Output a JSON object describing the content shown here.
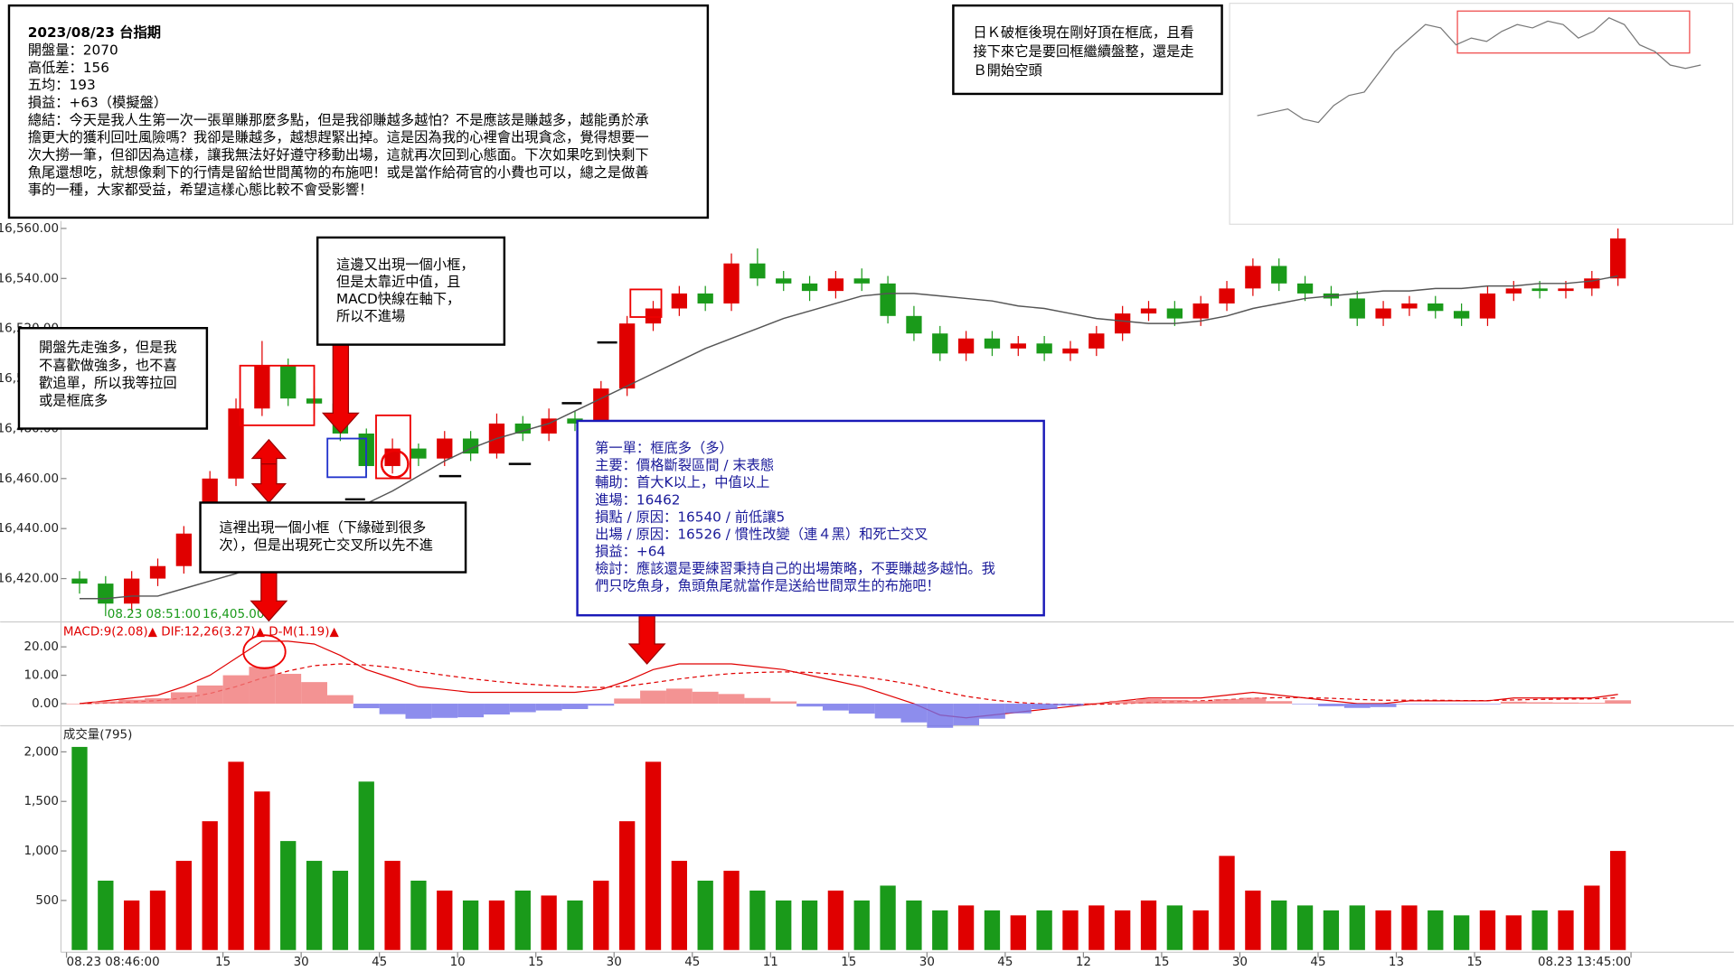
{
  "chart_data": [
    {
      "type": "candlestick",
      "open": [
        16420,
        16418,
        16410,
        16420,
        16425,
        16438,
        16460,
        16488,
        16505,
        16492,
        16490,
        16478,
        16465,
        16472,
        16468,
        16476,
        16470,
        16482,
        16478,
        16484,
        16482,
        16496,
        16522,
        16528,
        16534,
        16530,
        16546,
        16540,
        16538,
        16535,
        16540,
        16538,
        16525,
        16518,
        16510,
        16516,
        16512,
        16514,
        16510,
        16512,
        16518,
        16526,
        16528,
        16524,
        16530,
        16536,
        16545,
        16538,
        16534,
        16532,
        16524,
        16528,
        16530,
        16527,
        16524,
        16534,
        16536,
        16535,
        16536,
        16540
      ],
      "high": [
        16423,
        16421,
        16423,
        16428,
        16441,
        16463,
        16492,
        16515,
        16508,
        16497,
        16493,
        16480,
        16476,
        16474,
        16479,
        16479,
        16486,
        16485,
        16488,
        16487,
        16499,
        16525,
        16531,
        16537,
        16537,
        16550,
        16552,
        16543,
        16541,
        16543,
        16544,
        16541,
        16529,
        16521,
        16519,
        16519,
        16517,
        16517,
        16515,
        16521,
        16529,
        16531,
        16531,
        16533,
        16539,
        16548,
        16548,
        16541,
        16537,
        16535,
        16531,
        16533,
        16533,
        16530,
        16537,
        16539,
        16539,
        16539,
        16543,
        16560
      ],
      "low": [
        16414,
        16405,
        16407,
        16417,
        16422,
        16435,
        16457,
        16485,
        16489,
        16486,
        16475,
        16461,
        16462,
        16465,
        16465,
        16467,
        16468,
        16475,
        16475,
        16479,
        16479,
        16493,
        16519,
        16525,
        16527,
        16527,
        16537,
        16535,
        16531,
        16532,
        16535,
        16522,
        16515,
        16507,
        16507,
        16509,
        16509,
        16507,
        16507,
        16509,
        16515,
        16523,
        16521,
        16521,
        16527,
        16533,
        16535,
        16531,
        16529,
        16521,
        16521,
        16525,
        16524,
        16521,
        16521,
        16531,
        16532,
        16532,
        16533,
        16537
      ],
      "close": [
        16418,
        16410,
        16420,
        16425,
        16438,
        16460,
        16488,
        16505,
        16492,
        16490,
        16478,
        16465,
        16472,
        16468,
        16476,
        16470,
        16482,
        16478,
        16484,
        16482,
        16496,
        16522,
        16528,
        16534,
        16530,
        16546,
        16540,
        16538,
        16535,
        16540,
        16538,
        16525,
        16518,
        16510,
        16516,
        16512,
        16514,
        16510,
        16512,
        16518,
        16526,
        16528,
        16524,
        16530,
        16536,
        16545,
        16538,
        16534,
        16532,
        16524,
        16528,
        16530,
        16527,
        16524,
        16534,
        16536,
        16535,
        16536,
        16540,
        16556
      ],
      "ma": [
        16412,
        16412,
        16413,
        16413,
        16416,
        16419,
        16422,
        16426,
        16430,
        16437,
        16444,
        16450,
        16455,
        16461,
        16467,
        16472,
        16476,
        16479,
        16482,
        16487,
        16492,
        16497,
        16502,
        16507,
        16512,
        16516,
        16520,
        16524,
        16527,
        16530,
        16533,
        16534,
        16534,
        16533,
        16532,
        16531,
        16529,
        16528,
        16526,
        16524,
        16523,
        16522,
        16522,
        16523,
        16525,
        16528,
        16530,
        16532,
        16533,
        16534,
        16535,
        16535,
        16536,
        16536,
        16537,
        16537,
        16538,
        16538,
        16539,
        16541
      ],
      "ma_color": "#555555",
      "up_color": "#e00000",
      "down_color": "#1a9a1a",
      "ylim": [
        16404,
        16563
      ],
      "yticks": [
        {
          "value": 16420,
          "label": "16,420.00"
        },
        {
          "value": 16440,
          "label": "16,440.00"
        },
        {
          "value": 16460,
          "label": "16,460.00"
        },
        {
          "value": 16480,
          "label": "16,480.00"
        },
        {
          "value": 16500,
          "label": "16,500.00"
        },
        {
          "value": 16520,
          "label": "16,520.00"
        },
        {
          "value": 16540,
          "label": "16,540.00"
        },
        {
          "value": 16560,
          "label": "16,560.00"
        }
      ],
      "xlim": [
        0,
        60
      ],
      "xticks": [
        {
          "value": 0,
          "label": "08.23 08:46:00"
        },
        {
          "value": 6,
          "label": "15"
        },
        {
          "value": 9,
          "label": "30"
        },
        {
          "value": 12,
          "label": "45"
        },
        {
          "value": 15,
          "label": "10"
        },
        {
          "value": 18,
          "label": "15"
        },
        {
          "value": 21,
          "label": "30"
        },
        {
          "value": 24,
          "label": "45"
        },
        {
          "value": 27,
          "label": "11"
        },
        {
          "value": 30,
          "label": "15"
        },
        {
          "value": 33,
          "label": "30"
        },
        {
          "value": 36,
          "label": "45"
        },
        {
          "value": 39,
          "label": "12"
        },
        {
          "value": 42,
          "label": "15"
        },
        {
          "value": 45,
          "label": "30"
        },
        {
          "value": 48,
          "label": "45"
        },
        {
          "value": 51,
          "label": "13"
        },
        {
          "value": 54,
          "label": "15"
        },
        {
          "value": 60,
          "label": "08.23 13:45:00"
        }
      ],
      "cursor_label": [
        "08.23 08:51:00",
        "16,405.00"
      ],
      "annotations": [
        {
          "lines": [
            "2023/08/23 台指期",
            "開盤量：2070",
            "高低差：156",
            "五均：193",
            "損益：+63（模擬盤）",
            "總結：今天是我人生第一次一張單賺那麼多點，但是我卻賺越多越怕？不是應該是賺越多，越能勇於承",
            "擔更大的獲利回吐風險嗎？我卻是賺越多，越想趕緊出掉。這是因為我的心裡會出現貪念，覺得想要一",
            "次大撈一筆，但卻因為這樣，讓我無法好好遵守移動出場，這就再次回到心態面。下次如果吃到快剩下",
            "魚尾還想吃，就想像剩下的行情是留給世間萬物的布施吧！或是當作給荷官的小費也可以，總之是做善",
            "事的一種，大家都受益，希望這樣心態比較不會受影響！"
          ]
        },
        {
          "lines": [
            "日Ｋ破框後現在剛好頂在框底，且看",
            "接下來它是要回框繼續盤整，還是走",
            "Ｂ開始空頭"
          ]
        },
        {
          "lines": [
            "開盤先走強多，但是我",
            "不喜歡做強多，也不喜",
            "歡追單，所以我等拉回",
            "或是框底多"
          ]
        },
        {
          "lines": [
            "這邊又出現一個小框，",
            "但是太靠近中值，且",
            "MACD快線在軸下，",
            "所以不進場"
          ]
        },
        {
          "lines": [
            "這裡出現一個小框（下緣碰到很多",
            "次），但是出現死亡交叉所以先不進"
          ]
        },
        {
          "lines": [
            "第一單：框底多（多）",
            "主要：價格斷裂區間 / 末表態",
            "輔助：首大K以上，中值以上",
            "進場：16462",
            "損點 / 原因：16540 / 前低讓5",
            "出場 / 原因：16526 / 慣性改變（連４黑）和死亡交叉",
            "損益：+64",
            "檢討：應該還是要練習秉持自己的出場策略，不要賺越多越怕。我",
            "們只吃魚身，魚頭魚尾就當作是送給世間眾生的布施吧！"
          ]
        }
      ]
    },
    {
      "type": "line",
      "title": "MACD:9(2.08)▲ DIF:12,26(3.27)▲ D-M(1.19)▲",
      "ylim": [
        -7,
        28
      ],
      "yticks": [
        {
          "value": 0,
          "label": "0.00"
        },
        {
          "value": 10,
          "label": "10.00"
        },
        {
          "value": 20,
          "label": "20.00"
        }
      ],
      "series": [
        {
          "color": "#e00000",
          "style": "solid",
          "values": [
            0,
            1,
            2,
            3,
            6,
            10,
            16,
            22,
            22,
            21,
            17,
            12,
            9,
            6,
            5,
            4,
            4,
            4,
            4,
            4,
            5,
            8,
            12,
            14,
            14,
            14,
            13,
            12,
            10,
            8,
            6,
            3,
            0,
            -4,
            -5,
            -4,
            -3,
            -2,
            -1,
            0,
            1,
            2,
            2,
            2,
            3,
            4,
            3,
            2,
            1,
            0,
            0,
            1,
            1,
            1,
            1,
            2,
            2,
            2,
            2,
            3.27
          ]
        },
        {
          "color": "#e00000",
          "style": "dashed",
          "values": [
            0,
            0.2,
            0.6,
            1.1,
            2,
            3.6,
            6,
            9,
            11.5,
            13.4,
            14,
            13.6,
            12.7,
            11.3,
            10,
            8.8,
            7.8,
            7,
            6.4,
            5.9,
            5.7,
            6.2,
            7.4,
            8.7,
            9.8,
            10.6,
            11,
            11.2,
            11,
            10.4,
            9.5,
            8.2,
            6.6,
            4.5,
            2.6,
            1.3,
            0.4,
            -0.1,
            -0.3,
            -0.2,
            0,
            0.4,
            0.7,
            1,
            1.4,
            1.9,
            2.1,
            2.1,
            1.9,
            1.5,
            1.2,
            1.2,
            1.2,
            1.1,
            1.1,
            1.3,
            1.5,
            1.6,
            1.7,
            2.08
          ]
        },
        {
          "color": "#f07878",
          "negative_color": "#7070e8",
          "style": "bar",
          "values": [
            0,
            0.8,
            1.4,
            1.9,
            4,
            6.4,
            10,
            13,
            10.5,
            7.6,
            3,
            -1.6,
            -3.7,
            -5.3,
            -5,
            -4.8,
            -3.8,
            -3,
            -2.4,
            -1.9,
            -0.7,
            1.8,
            4.6,
            5.3,
            4.2,
            3.4,
            2,
            0.8,
            -1,
            -2.4,
            -3.5,
            -5.2,
            -6.6,
            -8.5,
            -7.6,
            -5.3,
            -3.4,
            -1.9,
            -0.7,
            0.2,
            1,
            1.6,
            1.3,
            1,
            1.6,
            2.1,
            0.9,
            -0.1,
            -0.9,
            -1.5,
            -1.2,
            -0.2,
            -0.2,
            -0.1,
            -0.1,
            0.7,
            0.5,
            0.4,
            0.3,
            1.19
          ]
        }
      ]
    },
    {
      "type": "bar",
      "title": "成交量(795)",
      "ylim": [
        0,
        2230
      ],
      "yticks": [
        500,
        {
          "value": 1000,
          "label": "1,000"
        },
        {
          "value": 1500,
          "label": "1,500"
        },
        {
          "value": 2000,
          "label": "2,000"
        }
      ],
      "flat_color": "#111111",
      "values": [
        2050,
        700,
        500,
        600,
        900,
        1300,
        1900,
        1600,
        1100,
        900,
        800,
        1700,
        900,
        700,
        600,
        500,
        500,
        600,
        550,
        500,
        700,
        1300,
        1900,
        900,
        700,
        800,
        600,
        500,
        500,
        600,
        500,
        650,
        500,
        400,
        450,
        400,
        350,
        400,
        400,
        450,
        400,
        500,
        450,
        400,
        950,
        600,
        500,
        450,
        400,
        450,
        400,
        450,
        400,
        350,
        400,
        350,
        400,
        400,
        650,
        1000
      ]
    },
    {
      "type": "line",
      "color": "#777777",
      "ylim": [
        15700,
        17500
      ],
      "values": [
        15950,
        16000,
        16050,
        15900,
        15850,
        16100,
        16250,
        16300,
        16600,
        16900,
        17100,
        17300,
        17250,
        17000,
        17100,
        17050,
        17200,
        17300,
        17250,
        17350,
        17300,
        17100,
        17200,
        17400,
        17300,
        17000,
        16900,
        16700,
        16650,
        16700
      ]
    }
  ]
}
